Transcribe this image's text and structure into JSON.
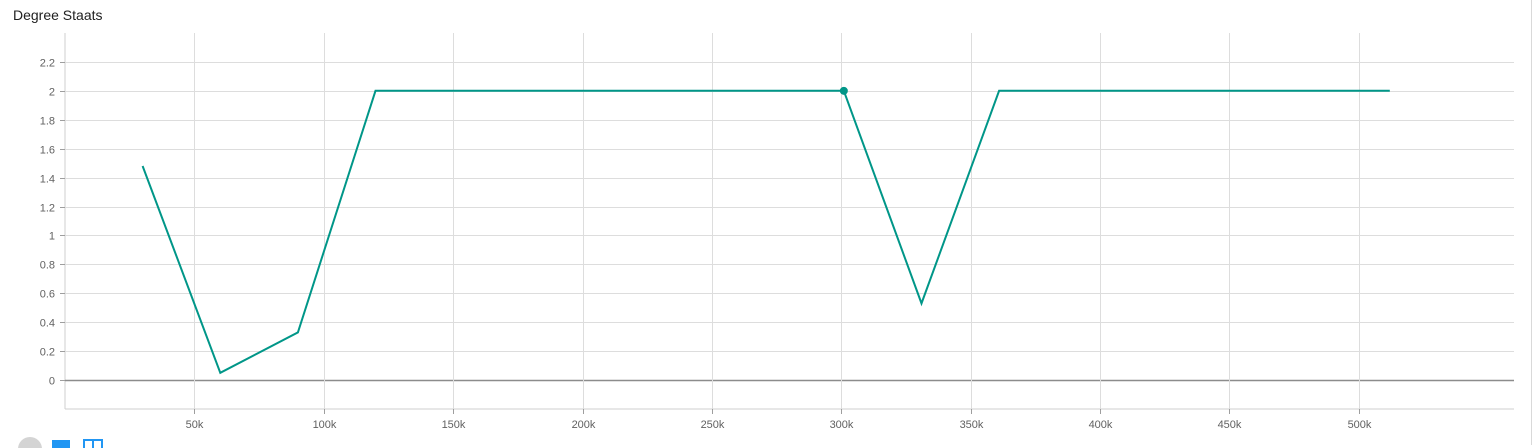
{
  "card": {
    "title": "Degree Staats"
  },
  "chart_data": {
    "type": "line",
    "title": "Degree Staats",
    "xlabel": "",
    "ylabel": "",
    "xlim": [
      0,
      560000
    ],
    "ylim": [
      -0.2,
      2.4
    ],
    "x_ticks": [
      50000,
      100000,
      150000,
      200000,
      250000,
      300000,
      350000,
      400000,
      450000,
      500000
    ],
    "x_tick_labels": [
      "50k",
      "100k",
      "150k",
      "200k",
      "250k",
      "300k",
      "350k",
      "400k",
      "450k",
      "500k"
    ],
    "y_ticks": [
      0,
      0.2,
      0.4,
      0.6,
      0.8,
      1,
      1.2,
      1.4,
      1.6,
      1.8,
      2,
      2.2
    ],
    "y_tick_labels": [
      "0",
      "0.2",
      "0.4",
      "0.6",
      "0.8",
      "1",
      "1.2",
      "1.4",
      "1.6",
      "1.8",
      "2",
      "2.2"
    ],
    "grid": true,
    "series": [
      {
        "color": "#009688",
        "x": [
          30000,
          60000,
          90000,
          120000,
          150000,
          180000,
          210000,
          240000,
          270000,
          301000,
          331000,
          361000,
          391000,
          421000,
          451000,
          481000,
          512000
        ],
        "y": [
          1.48,
          0.05,
          0.33,
          2,
          2,
          2,
          2,
          2,
          2,
          2,
          0.53,
          2,
          2,
          2,
          2,
          2,
          2
        ]
      }
    ],
    "highlight_point": {
      "x": 301000,
      "y": 2
    }
  },
  "colors": {
    "line": "#009688",
    "grid": "#dddddd",
    "zero_axis": "#8c8c8c",
    "ctl_grey": "#d4d4d4",
    "ctl_blue": "#2196f3"
  },
  "controls": [
    {
      "name": "toggle-y-axis-log-button",
      "icon": "circle-icon"
    },
    {
      "name": "expand-chart-button",
      "icon": "square-icon"
    },
    {
      "name": "download-data-button",
      "icon": "grid-icon"
    }
  ]
}
